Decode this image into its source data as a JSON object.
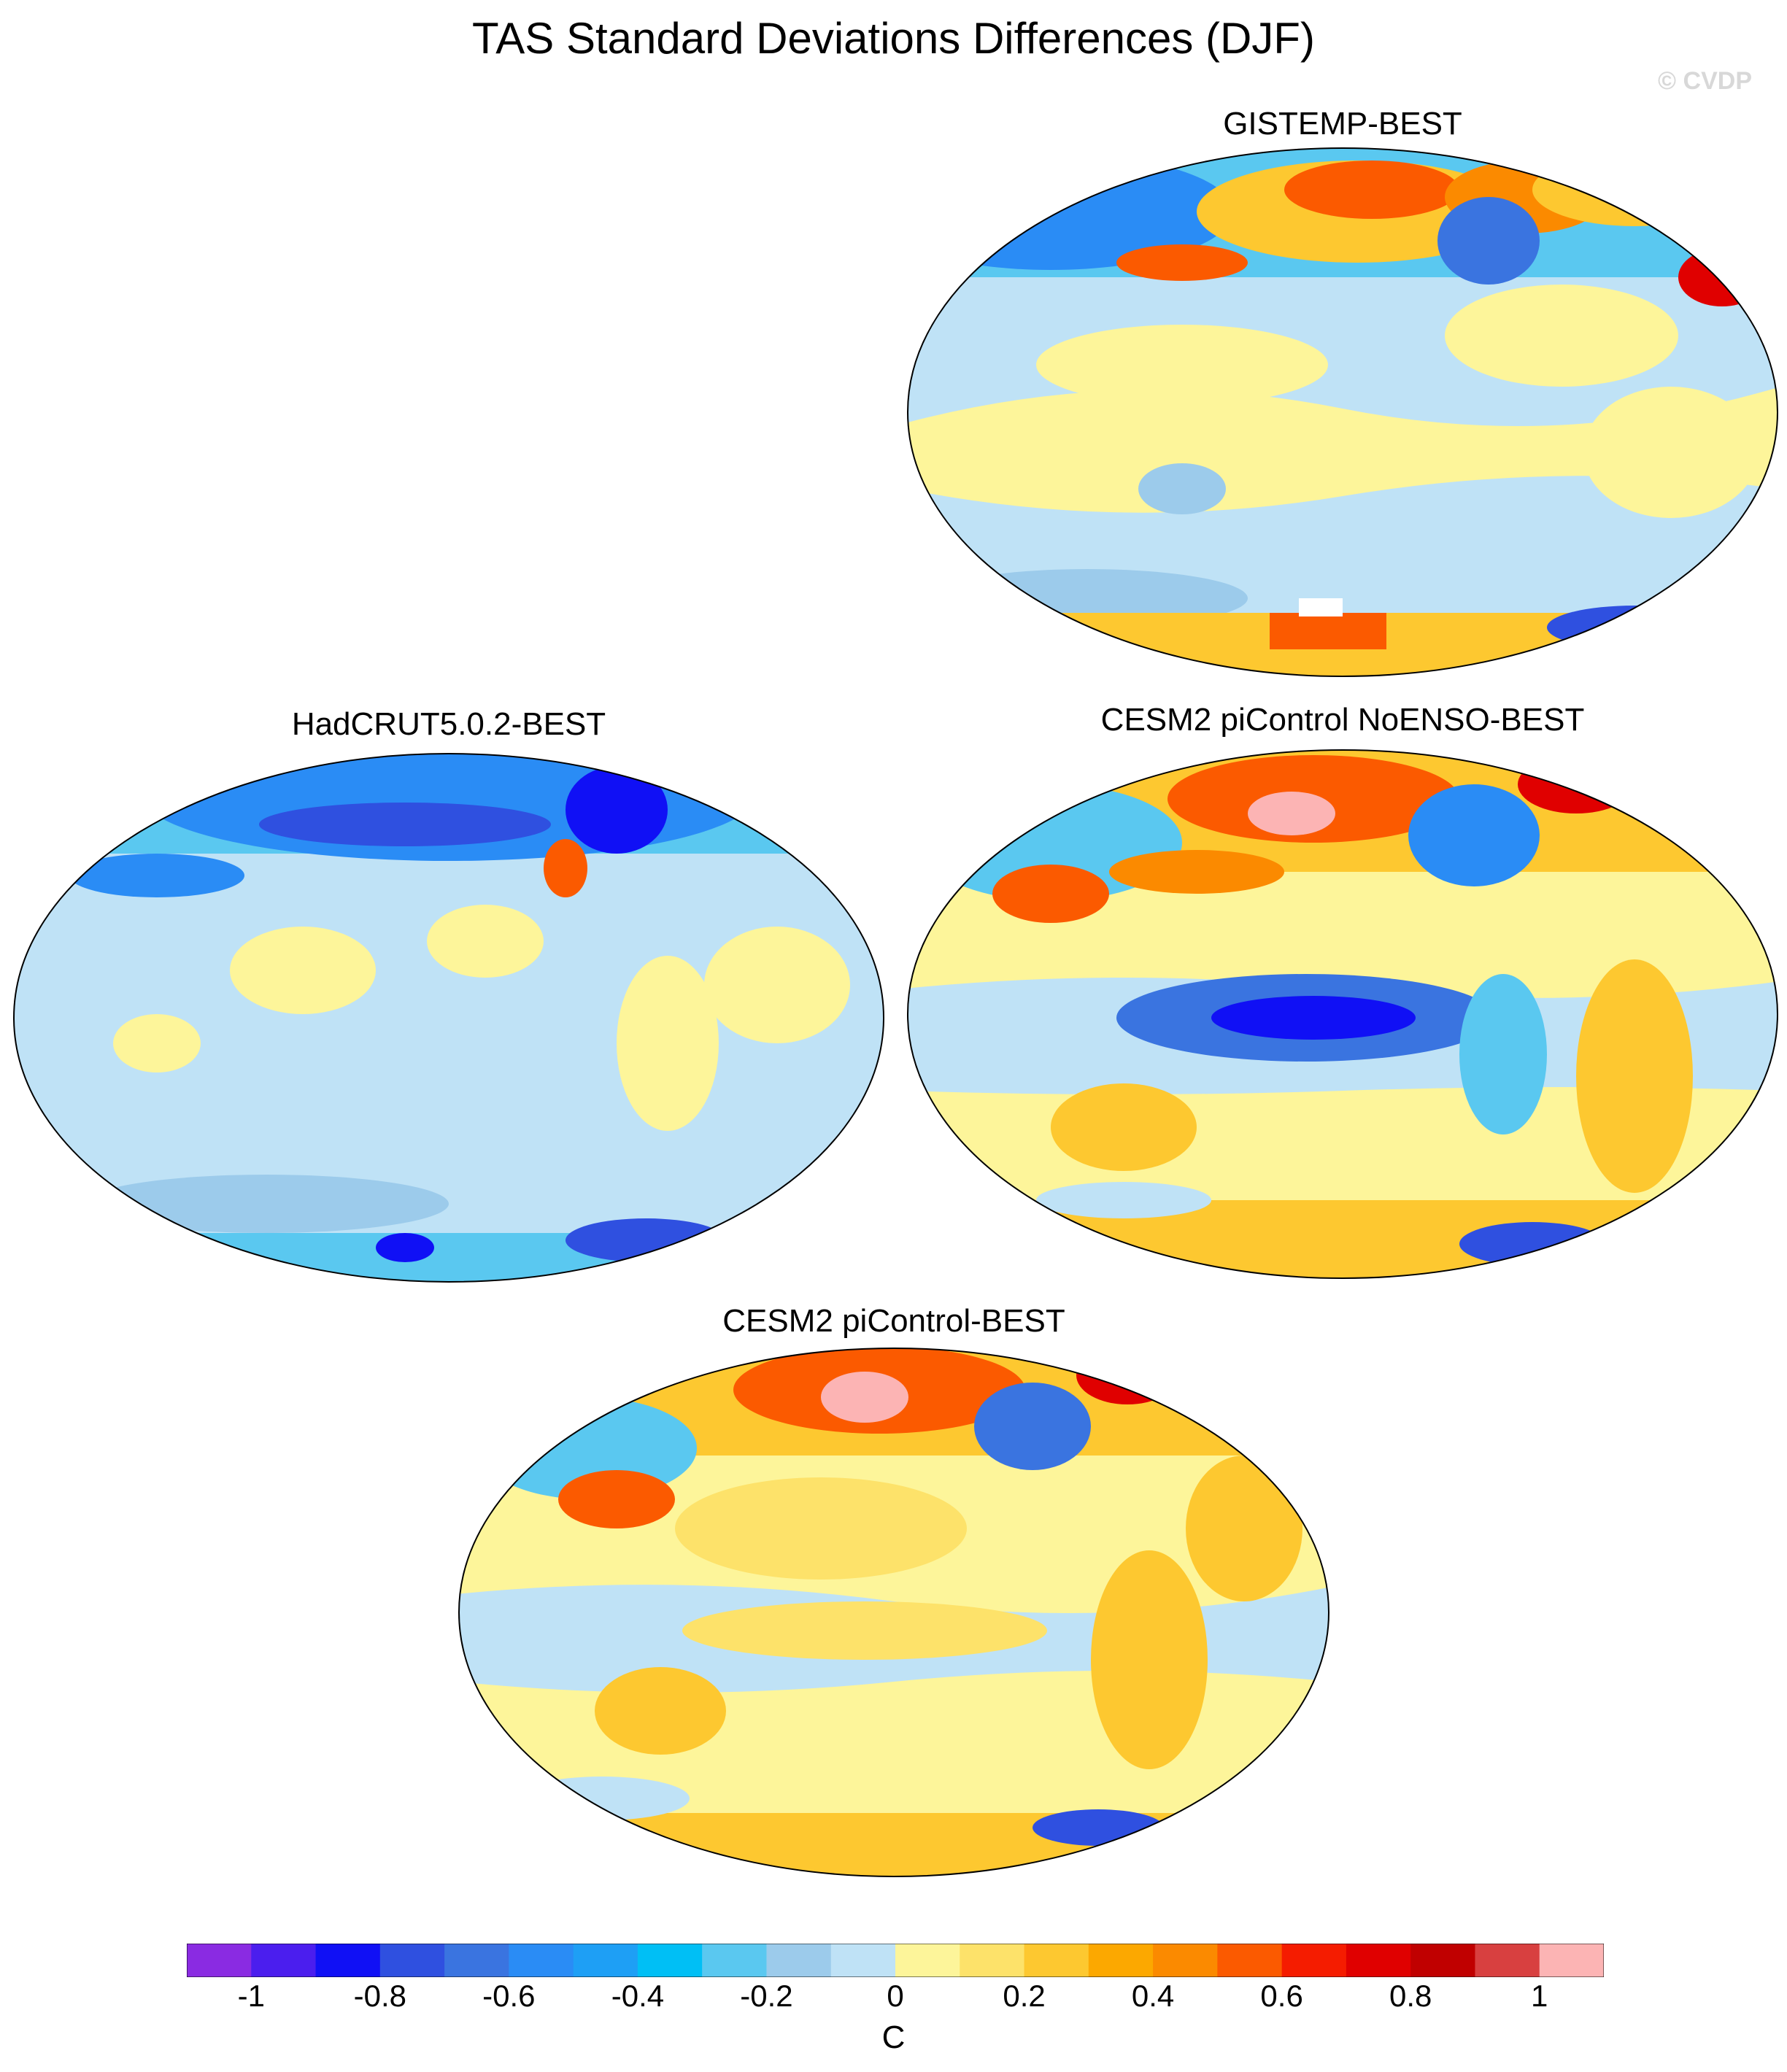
{
  "title": "TAS Standard Deviations Differences (DJF)",
  "watermark": "© CVDP",
  "panels": [
    {
      "id": "gistemp",
      "label": "GISTEMP-BEST",
      "mean_tone": "cool-mixed"
    },
    {
      "id": "hadcrut",
      "label": "HadCRUT5.0.2-BEST",
      "mean_tone": "cool"
    },
    {
      "id": "noenso",
      "label": "CESM2 piControl NoENSO-BEST",
      "mean_tone": "warm-mixed"
    },
    {
      "id": "picontrol",
      "label": "CESM2 piControl-BEST",
      "mean_tone": "warm"
    }
  ],
  "colorbar": {
    "unit": "C",
    "tick_labels": [
      "-1",
      "-0.8",
      "-0.6",
      "-0.4",
      "-0.2",
      "0",
      "0.2",
      "0.4",
      "0.6",
      "0.8",
      "1"
    ],
    "colors": [
      "#8a2be2",
      "#4b1eee",
      "#1010f5",
      "#2f50e0",
      "#3a74e0",
      "#2a8cf5",
      "#1e9ff5",
      "#00bff5",
      "#5ac8f0",
      "#9ccbeb",
      "#bfe2f6",
      "#fdf59a",
      "#fde26a",
      "#fdc830",
      "#fca800",
      "#fb8a00",
      "#fb5a00",
      "#f51c00",
      "#e00000",
      "#c00000",
      "#d84040",
      "#fcb4b4"
    ]
  }
}
